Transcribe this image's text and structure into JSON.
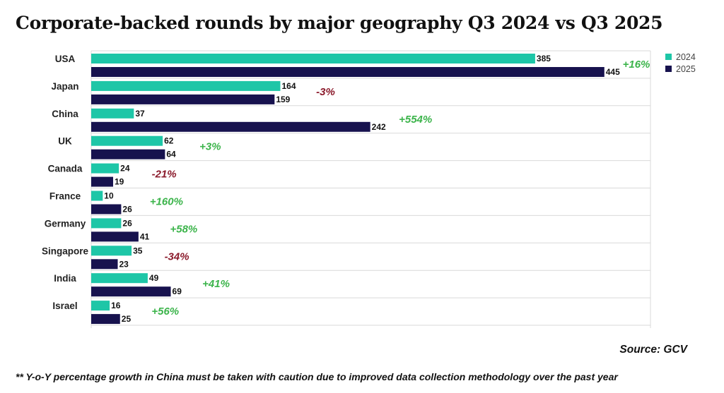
{
  "title": "Corporate-backed rounds by major geography Q3 2024 vs Q3 2025",
  "source": "Source: GCV",
  "footnote": "** Y-o-Y percentage growth in China must be taken with caution due to improved data collection methodology over the past year",
  "colors": {
    "series_2024": "#1ec6a7",
    "series_2025": "#17124e",
    "positive": "#3cb44b",
    "negative": "#8b1a2b",
    "gridline": "#d9d9d9"
  },
  "chart_data": {
    "type": "bar",
    "orientation": "horizontal",
    "categories": [
      "USA",
      "Japan",
      "China",
      "UK",
      "Canada",
      "France",
      "Germany",
      "Singapore",
      "India",
      "Israel"
    ],
    "series": [
      {
        "name": "2024",
        "values": [
          385,
          164,
          37,
          62,
          24,
          10,
          26,
          35,
          49,
          16
        ]
      },
      {
        "name": "2025",
        "values": [
          445,
          159,
          242,
          64,
          19,
          26,
          41,
          23,
          69,
          25
        ]
      }
    ],
    "growth_labels": [
      "+16%",
      "-3%",
      "+554%",
      "+3%",
      "-21%",
      "+160%",
      "+58%",
      "-34%",
      "+41%",
      "+56%"
    ],
    "xlim": [
      0,
      485
    ],
    "grid": true,
    "legend": "top-right"
  }
}
